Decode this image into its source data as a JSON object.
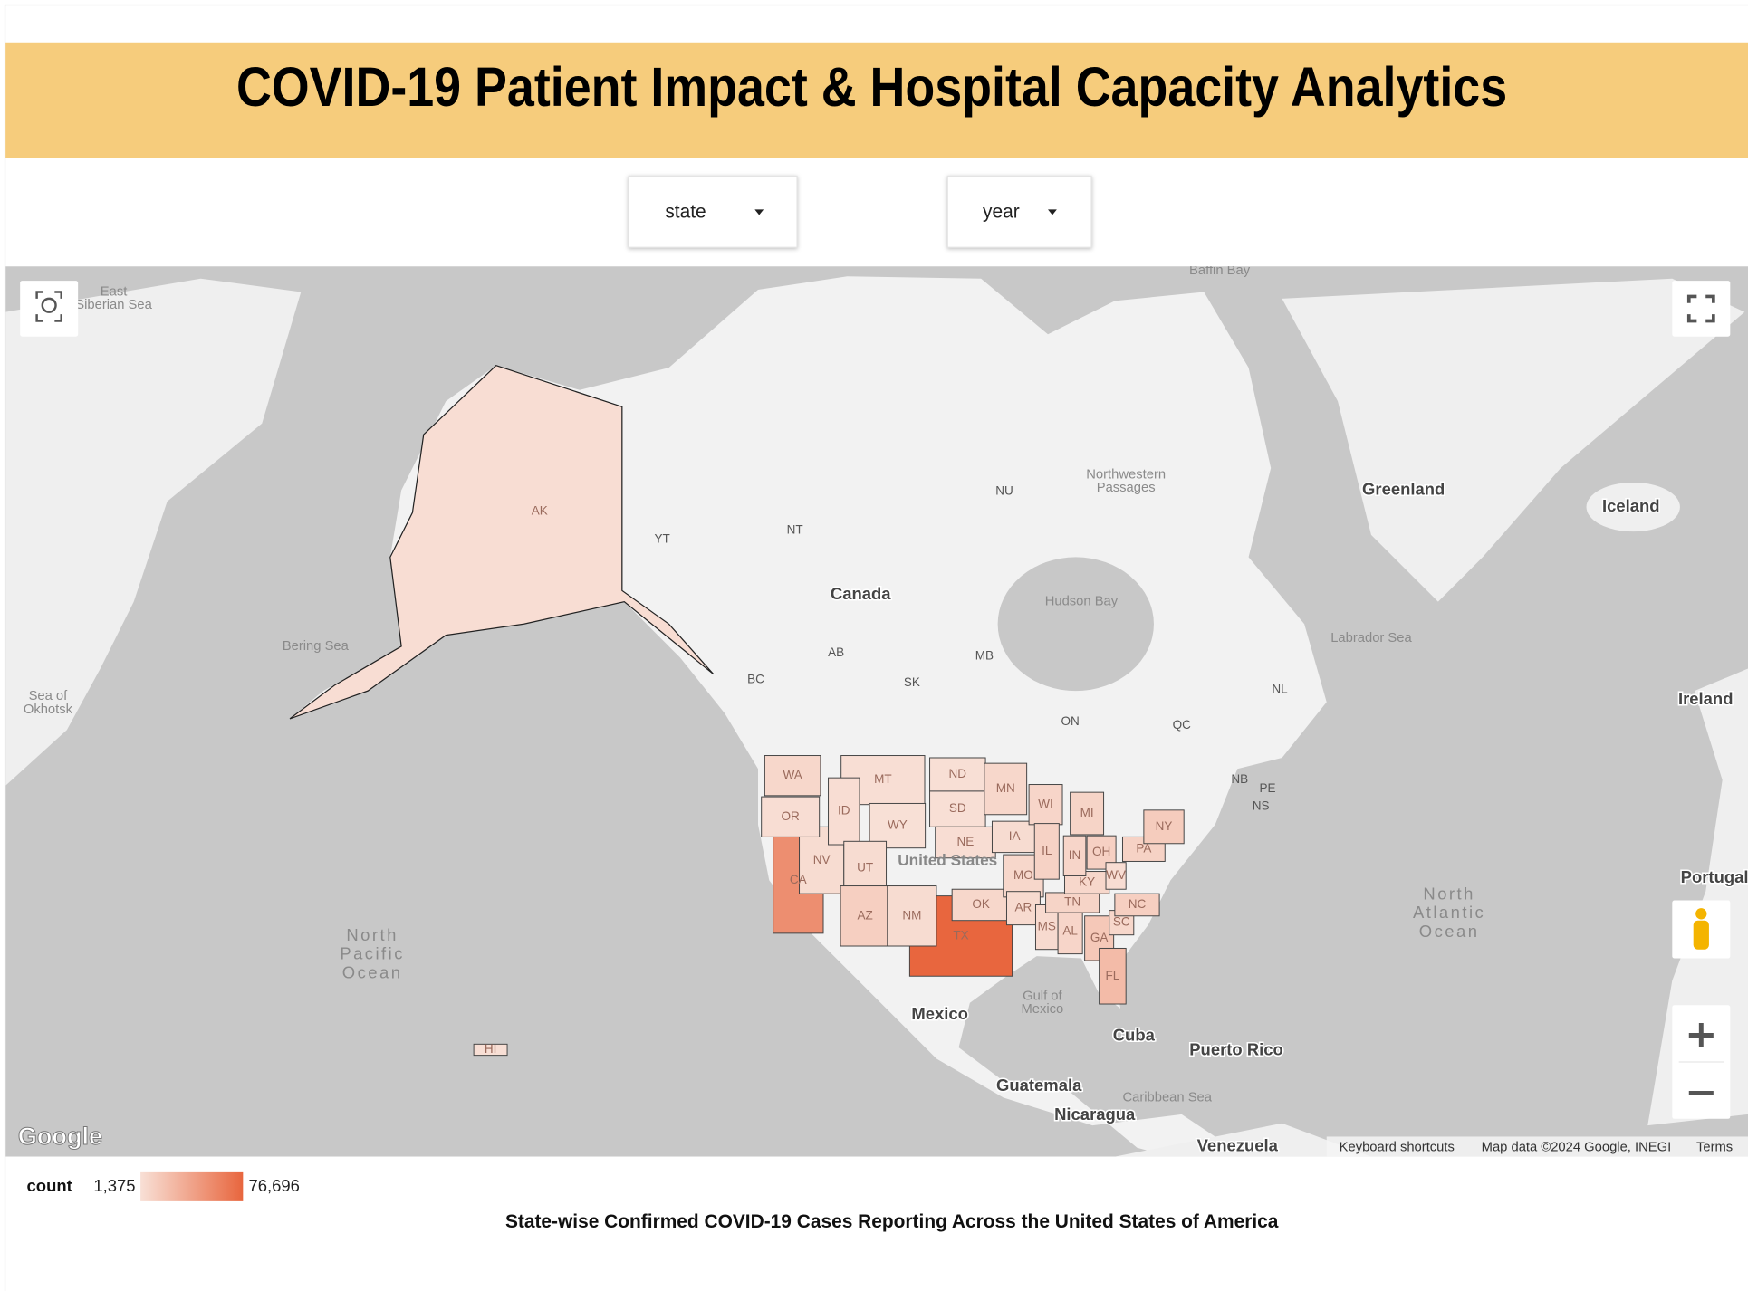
{
  "header": {
    "title": "COVID-19 Patient Impact & Hospital Capacity Analytics"
  },
  "filters": [
    "state",
    "year"
  ],
  "map": {
    "places": [
      [
        "East",
        "Siberian Sea"
      ],
      [
        "Baffin Bay"
      ],
      [
        "Northwestern",
        "Passages"
      ],
      [
        "Greenland"
      ],
      [
        "Iceland"
      ],
      [
        "NU"
      ],
      [
        "YT"
      ],
      [
        "NT"
      ],
      [
        "Canada"
      ],
      [
        "Hudson Bay"
      ],
      [
        "Labrador Sea"
      ],
      [
        "Bering Sea"
      ],
      [
        "AB"
      ],
      [
        "MB"
      ],
      [
        "BC"
      ],
      [
        "SK"
      ],
      [
        "NL"
      ],
      [
        "Sea of",
        "Okhotsk"
      ],
      [
        "Ireland"
      ],
      [
        "ON"
      ],
      [
        "QC"
      ],
      [
        "NB"
      ],
      [
        "PE"
      ],
      [
        "NS"
      ],
      [
        "United States"
      ],
      [
        "Portugal"
      ],
      [
        "North",
        "Atlantic",
        "Ocean"
      ],
      [
        "North",
        "Pacific",
        "Ocean"
      ],
      [
        "Gulf of",
        "Mexico"
      ],
      [
        "Mexico"
      ],
      [
        "Cuba"
      ],
      [
        "Puerto Rico"
      ],
      [
        "Guatemala"
      ],
      [
        "Caribbean Sea"
      ],
      [
        "Nicaragua"
      ],
      [
        "Venezuela"
      ]
    ],
    "states": {
      "labels": [
        "AK",
        "TX",
        "CA",
        "MT",
        "NV",
        "ID",
        "WY",
        "UT",
        "AZ",
        "NM",
        "WA",
        "OR",
        "ND",
        "SD",
        "NE",
        "OK",
        "MN",
        "IA",
        "MO",
        "AR",
        "WI",
        "IL",
        "MS",
        "AL",
        "TN",
        "KY",
        "IN",
        "OH",
        "MI",
        "GA",
        "FL",
        "SC",
        "NC",
        "WV",
        "PA",
        "NY",
        "HI"
      ],
      "counts": [
        3000,
        76696,
        52000,
        2500,
        4000,
        3000,
        1375,
        4000,
        12000,
        4000,
        7000,
        3000,
        2000,
        2000,
        3000,
        7000,
        7000,
        4000,
        7000,
        5000,
        8000,
        10000,
        5000,
        8000,
        9000,
        7000,
        8000,
        11000,
        9000,
        16000,
        24000,
        7000,
        12000,
        3000,
        10000,
        14000,
        2000
      ]
    },
    "logo": "Google",
    "attribution": [
      "Keyboard shortcuts",
      "Map data ©2024 Google, INEGI",
      "Terms"
    ]
  },
  "legend": {
    "title": "count",
    "min": {
      "value": 1375,
      "label": "1,375"
    },
    "max": {
      "value": 76696,
      "label": "76,696"
    }
  },
  "caption": "State-wise Confirmed COVID-19 Cases Reporting Across the United States of America"
}
